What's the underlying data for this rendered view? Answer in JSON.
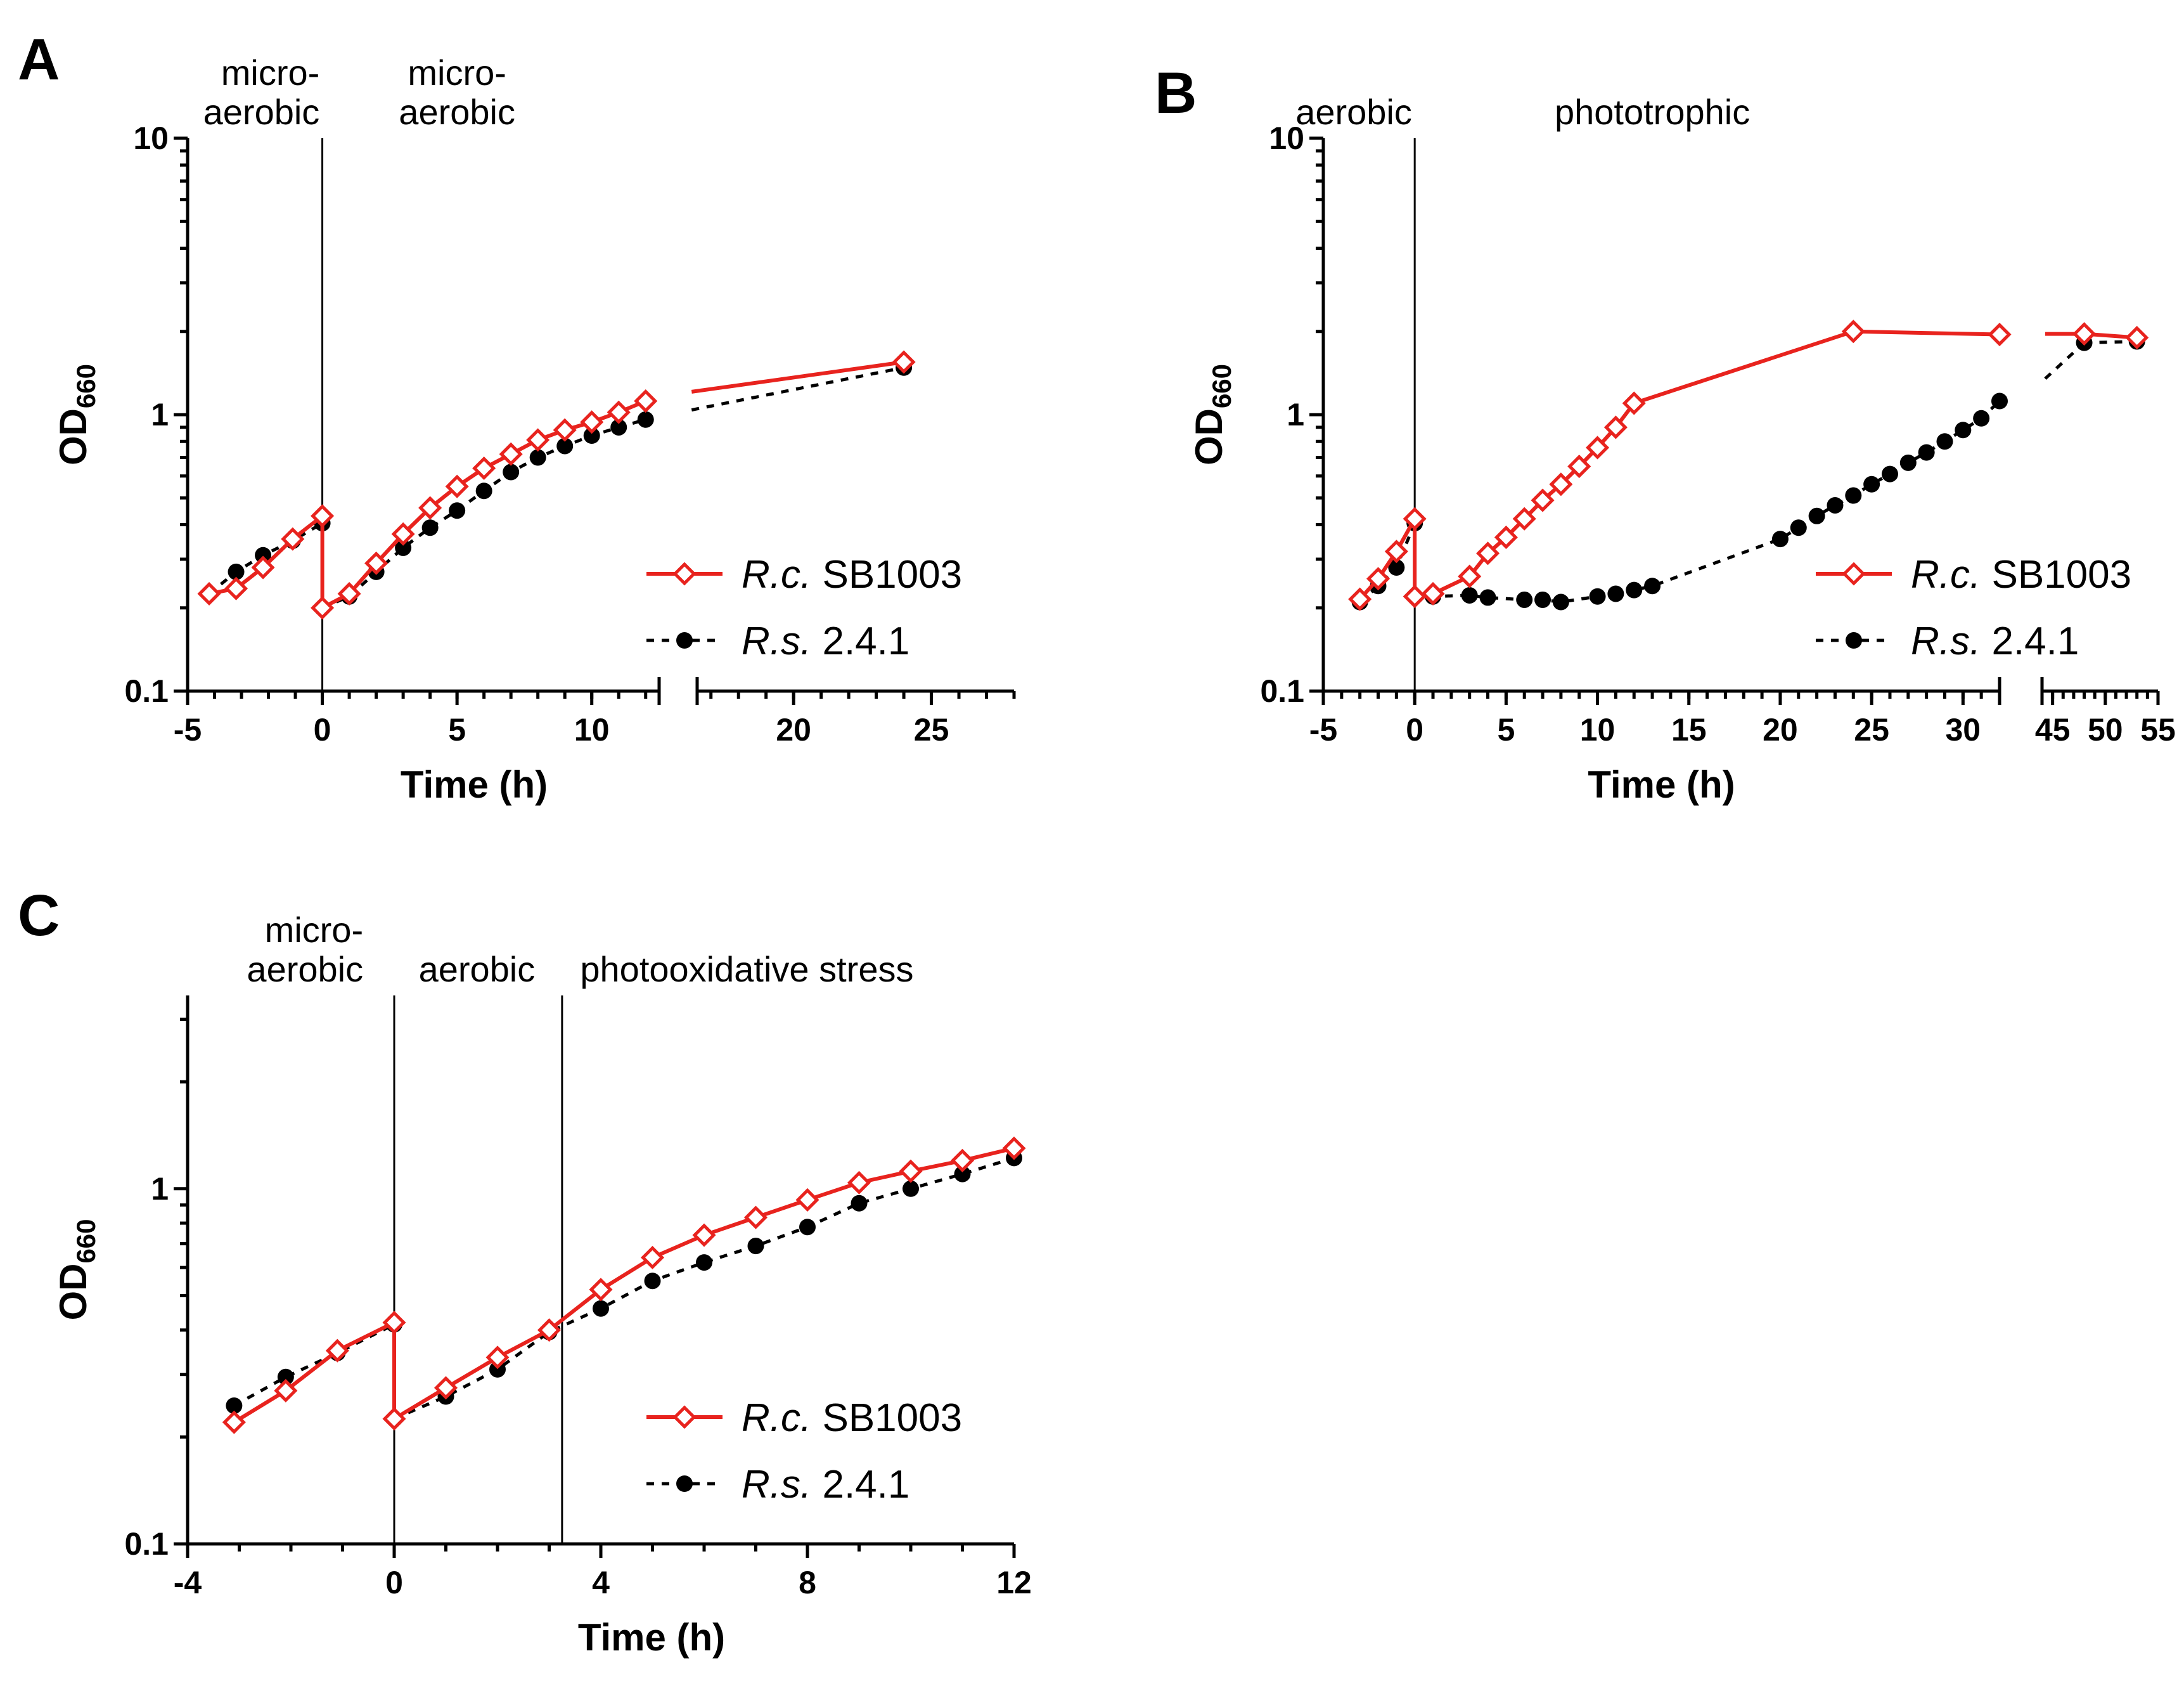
{
  "chart_data": [
    {
      "id": "A",
      "type": "line",
      "panel_letter": "A",
      "title": "",
      "xlabel": "Time (h)",
      "ylabel": "OD",
      "ylabel_sub": "660",
      "yscale": "log",
      "ylim": [
        0.1,
        10
      ],
      "x_segments": [
        [
          -5,
          12.5
        ],
        [
          16.5,
          28
        ]
      ],
      "xticks": [
        -5,
        0,
        5,
        10,
        20,
        25
      ],
      "xtick_labels": [
        "-5",
        "0",
        "5",
        "10",
        "20",
        "25"
      ],
      "yticks": [
        0.1,
        1,
        10
      ],
      "ytick_labels": [
        "0.1",
        "1",
        "10"
      ],
      "phase_lines": [
        0
      ],
      "phase_labels": [
        {
          "lines": [
            "micro-",
            "aerobic"
          ],
          "anchor": "end",
          "at": -0.1
        },
        {
          "lines": [
            "micro-",
            "aerobic"
          ],
          "anchor": "middle",
          "at": 5.0
        }
      ],
      "legend_position": "lower-right",
      "series": [
        {
          "name": "R.c. SB1003",
          "name_italic": "R.c.",
          "name_rest": " SB1003",
          "color": "#e8231e",
          "marker": "diamond-open",
          "dashed": false,
          "groups": [
            [
              [
                -4.2,
                0.225
              ],
              [
                -3.2,
                0.235
              ],
              [
                -2.2,
                0.28
              ],
              [
                -1.1,
                0.355
              ],
              [
                0,
                0.43
              ]
            ],
            [
              [
                0,
                0.2
              ],
              [
                1,
                0.225
              ],
              [
                2,
                0.29
              ],
              [
                3,
                0.37
              ],
              [
                4,
                0.46
              ],
              [
                5,
                0.55
              ],
              [
                6,
                0.64
              ],
              [
                7,
                0.72
              ],
              [
                8,
                0.81
              ],
              [
                9,
                0.88
              ],
              [
                10,
                0.94
              ],
              [
                11,
                1.02
              ],
              [
                12,
                1.12
              ]
            ],
            [
              [
                24,
                1.55
              ]
            ]
          ],
          "connect_breaks": [
            [
              12,
              1.12
            ],
            [
              16.3,
              1.21
            ]
          ]
        },
        {
          "name": "R.s. 2.4.1",
          "name_italic": "R.s.",
          "name_rest": " 2.4.1",
          "color": "#000000",
          "marker": "circle-filled",
          "dashed": true,
          "groups": [
            [
              [
                -4.2,
                0.225
              ],
              [
                -3.2,
                0.27
              ],
              [
                -2.2,
                0.31
              ],
              [
                -1.1,
                0.35
              ],
              [
                0,
                0.405
              ]
            ],
            [
              [
                0,
                0.2
              ],
              [
                1,
                0.22
              ],
              [
                2,
                0.27
              ],
              [
                3,
                0.33
              ],
              [
                4,
                0.39
              ],
              [
                5,
                0.45
              ],
              [
                6,
                0.53
              ],
              [
                7,
                0.62
              ],
              [
                8,
                0.7
              ],
              [
                9,
                0.77
              ],
              [
                10,
                0.84
              ],
              [
                11,
                0.9
              ],
              [
                12,
                0.96
              ]
            ],
            [
              [
                24,
                1.48
              ]
            ]
          ],
          "connect_breaks": [
            [
              12,
              0.96
            ],
            [
              16.3,
              1.04
            ]
          ]
        }
      ]
    },
    {
      "id": "B",
      "type": "line",
      "panel_letter": "B",
      "title": "",
      "xlabel": "Time (h)",
      "ylabel": "OD",
      "ylabel_sub": "660",
      "yscale": "log",
      "ylim": [
        0.1,
        10
      ],
      "x_segments": [
        [
          -5,
          32
        ],
        [
          44,
          55
        ]
      ],
      "xticks": [
        -5,
        0,
        5,
        10,
        15,
        20,
        25,
        30,
        45,
        50,
        55
      ],
      "xtick_labels": [
        "-5",
        "0",
        "5",
        "10",
        "15",
        "20",
        "25",
        "30",
        "45",
        "50",
        "55"
      ],
      "yticks": [
        0.1,
        1,
        10
      ],
      "ytick_labels": [
        "0.1",
        "1",
        "10"
      ],
      "phase_lines": [
        0
      ],
      "phase_labels": [
        {
          "lines": [
            "aerobic"
          ],
          "anchor": "end",
          "at": -0.15
        },
        {
          "lines": [
            "phototrophic"
          ],
          "anchor": "middle",
          "at": 13
        }
      ],
      "legend_position": "lower-right",
      "series": [
        {
          "name": "R.c. SB1003",
          "name_italic": "R.c.",
          "name_rest": " SB1003",
          "color": "#e8231e",
          "marker": "diamond-open",
          "dashed": false,
          "groups": [
            [
              [
                -3,
                0.215
              ],
              [
                -2,
                0.255
              ],
              [
                -1,
                0.32
              ],
              [
                0,
                0.42
              ]
            ],
            [
              [
                0,
                0.22
              ],
              [
                1,
                0.225
              ],
              [
                3,
                0.26
              ],
              [
                4,
                0.315
              ],
              [
                5,
                0.36
              ],
              [
                6,
                0.42
              ],
              [
                7,
                0.49
              ],
              [
                8,
                0.56
              ],
              [
                9,
                0.65
              ],
              [
                10,
                0.76
              ],
              [
                11,
                0.9
              ],
              [
                12,
                1.1
              ],
              [
                24,
                2.0
              ],
              [
                32,
                1.95
              ]
            ],
            [
              [
                48,
                1.96
              ],
              [
                53,
                1.9
              ]
            ]
          ],
          "connect_breaks": [
            [
              44.3,
              1.96
            ],
            [
              48,
              1.96
            ]
          ]
        },
        {
          "name": "R.s. 2.4.1",
          "name_italic": "R.s.",
          "name_rest": " 2.4.1",
          "color": "#000000",
          "marker": "circle-filled",
          "dashed": true,
          "groups": [
            [
              [
                -3,
                0.21
              ],
              [
                -2,
                0.24
              ],
              [
                -1,
                0.28
              ],
              [
                0,
                0.405
              ]
            ],
            [
              [
                0,
                0.22
              ],
              [
                1,
                0.22
              ],
              [
                3,
                0.222
              ],
              [
                4,
                0.218
              ],
              [
                6,
                0.214
              ],
              [
                7,
                0.214
              ],
              [
                8,
                0.21
              ],
              [
                10,
                0.22
              ],
              [
                11,
                0.225
              ],
              [
                12,
                0.232
              ],
              [
                13,
                0.24
              ],
              [
                20,
                0.355
              ],
              [
                21,
                0.39
              ],
              [
                22,
                0.43
              ],
              [
                23,
                0.47
              ],
              [
                24,
                0.51
              ],
              [
                25,
                0.56
              ],
              [
                26,
                0.61
              ],
              [
                27,
                0.67
              ],
              [
                28,
                0.73
              ],
              [
                29,
                0.8
              ],
              [
                30,
                0.88
              ],
              [
                31,
                0.97
              ],
              [
                32,
                1.12
              ]
            ],
            [
              [
                48,
                1.82
              ],
              [
                53,
                1.84
              ]
            ]
          ],
          "connect_breaks": [
            [
              44.3,
              1.35
            ],
            [
              48,
              1.82
            ]
          ]
        }
      ]
    },
    {
      "id": "C",
      "type": "line",
      "panel_letter": "C",
      "title": "",
      "xlabel": "Time (h)",
      "ylabel": "OD",
      "ylabel_sub": "660",
      "yscale": "log",
      "ylim": [
        0.1,
        3.5
      ],
      "x_segments": [
        [
          -4,
          12
        ]
      ],
      "xticks": [
        -4,
        0,
        4,
        8,
        12
      ],
      "xtick_labels": [
        "-4",
        "0",
        "4",
        "8",
        "12"
      ],
      "yticks": [
        0.1,
        1
      ],
      "ytick_labels": [
        "0.1",
        "1"
      ],
      "phase_lines": [
        0,
        3.25
      ],
      "phase_labels": [
        {
          "lines": [
            "micro-",
            "aerobic"
          ],
          "anchor": "end",
          "at": -0.6
        },
        {
          "lines": [
            "aerobic"
          ],
          "anchor": "middle",
          "at": 1.6
        },
        {
          "lines": [
            "photooxidative stress"
          ],
          "anchor": "start",
          "at": 3.6
        }
      ],
      "legend_position": "lower-right",
      "series": [
        {
          "name": "R.c. SB1003",
          "name_italic": "R.c.",
          "name_rest": " SB1003",
          "color": "#e8231e",
          "marker": "diamond-open",
          "dashed": false,
          "groups": [
            [
              [
                -3.1,
                0.22
              ],
              [
                -2.1,
                0.27
              ],
              [
                -1.1,
                0.35
              ],
              [
                0,
                0.42
              ]
            ],
            [
              [
                0,
                0.225
              ],
              [
                1,
                0.275
              ],
              [
                2,
                0.335
              ],
              [
                3,
                0.4
              ],
              [
                4,
                0.52
              ],
              [
                5,
                0.64
              ],
              [
                6,
                0.74
              ],
              [
                7,
                0.83
              ],
              [
                8,
                0.93
              ],
              [
                9,
                1.04
              ],
              [
                10,
                1.12
              ],
              [
                11,
                1.2
              ],
              [
                12,
                1.3
              ]
            ]
          ]
        },
        {
          "name": "R.s. 2.4.1",
          "name_italic": "R.s.",
          "name_rest": " 2.4.1",
          "color": "#000000",
          "marker": "circle-filled",
          "dashed": true,
          "groups": [
            [
              [
                -3.1,
                0.245
              ],
              [
                -2.1,
                0.295
              ],
              [
                -1.1,
                0.345
              ],
              [
                0,
                0.415
              ]
            ],
            [
              [
                0,
                0.225
              ],
              [
                1,
                0.26
              ],
              [
                2,
                0.31
              ],
              [
                3,
                0.395
              ],
              [
                4,
                0.46
              ],
              [
                5,
                0.55
              ],
              [
                6,
                0.62
              ],
              [
                7,
                0.69
              ],
              [
                8,
                0.78
              ],
              [
                9,
                0.91
              ],
              [
                10,
                1.0
              ],
              [
                11,
                1.1
              ],
              [
                12,
                1.22
              ]
            ]
          ]
        }
      ]
    }
  ]
}
